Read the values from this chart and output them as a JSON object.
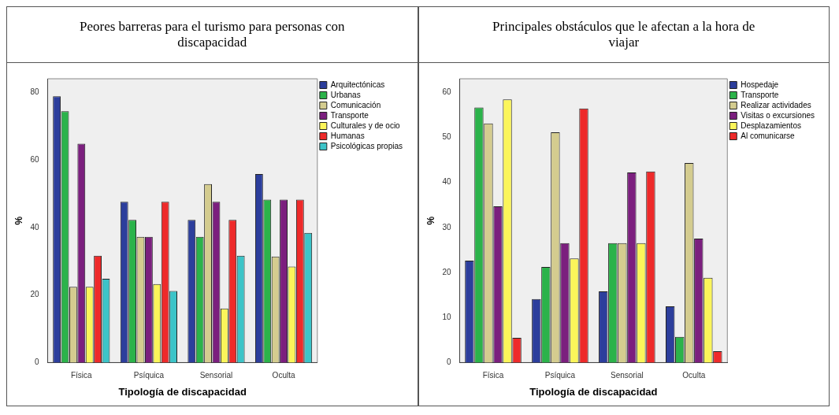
{
  "chart_data": [
    {
      "type": "bar",
      "title": "Peores barreras para el turismo para personas con discapacidad",
      "xlabel": "Tipología de discapacidad",
      "ylabel": "%",
      "categories": [
        "Física",
        "Psíquica",
        "Sensorial",
        "Oculta"
      ],
      "ylim": [
        0,
        84
      ],
      "yticks": [
        0,
        20,
        40,
        60,
        80
      ],
      "grid": false,
      "legend": "top right",
      "series": [
        {
          "name": "Arquitectónicas",
          "color": "#2c3e9c",
          "values": [
            78.8,
            47.6,
            42.2,
            55.8
          ]
        },
        {
          "name": "Urbanas",
          "color": "#2bb34a",
          "values": [
            74.4,
            42.2,
            37.2,
            48.2
          ]
        },
        {
          "name": "Comunicación",
          "color": "#d4cc8f",
          "values": [
            22.4,
            37.2,
            52.8,
            31.4
          ]
        },
        {
          "name": "Transporte",
          "color": "#7b1f7e",
          "values": [
            64.8,
            37.2,
            47.6,
            48.2
          ]
        },
        {
          "name": "Culturales y de ocio",
          "color": "#fbf55a",
          "values": [
            22.4,
            23.2,
            16,
            28.4
          ]
        },
        {
          "name": "Humanas",
          "color": "#ee2a2a",
          "values": [
            31.6,
            47.6,
            42.2,
            48.2
          ]
        },
        {
          "name": "Psicológicas propias",
          "color": "#3cc4c8",
          "values": [
            24.8,
            21.2,
            31.6,
            38.4
          ]
        }
      ]
    },
    {
      "type": "bar",
      "title": "Principales obstáculos que le afectan a la hora de viajar",
      "xlabel": "Tipología de discapacidad",
      "ylabel": "%",
      "categories": [
        "Física",
        "Psíquica",
        "Sensorial",
        "Oculta"
      ],
      "ylim": [
        0,
        63
      ],
      "yticks": [
        0,
        10,
        20,
        30,
        40,
        50,
        60
      ],
      "grid": false,
      "legend": "top right",
      "series": [
        {
          "name": "Hospedaje",
          "color": "#2c3e9c",
          "values": [
            22.6,
            14.1,
            15.8,
            12.5
          ]
        },
        {
          "name": "Transporte",
          "color": "#2bb34a",
          "values": [
            56.6,
            21.2,
            26.5,
            5.7
          ]
        },
        {
          "name": "Realizar actividades",
          "color": "#d4cc8f",
          "values": [
            53.1,
            51.1,
            26.5,
            44.3
          ]
        },
        {
          "name": "Visitas o excursiones",
          "color": "#7b1f7e",
          "values": [
            34.7,
            26.5,
            42.2,
            27.5
          ]
        },
        {
          "name": "Desplazamientos",
          "color": "#fbf55a",
          "values": [
            58.4,
            23.1,
            26.5,
            18.8
          ]
        },
        {
          "name": "Al comunicarse",
          "color": "#ee2a2a",
          "values": [
            5.5,
            56.4,
            42.4,
            2.5
          ]
        }
      ]
    }
  ]
}
